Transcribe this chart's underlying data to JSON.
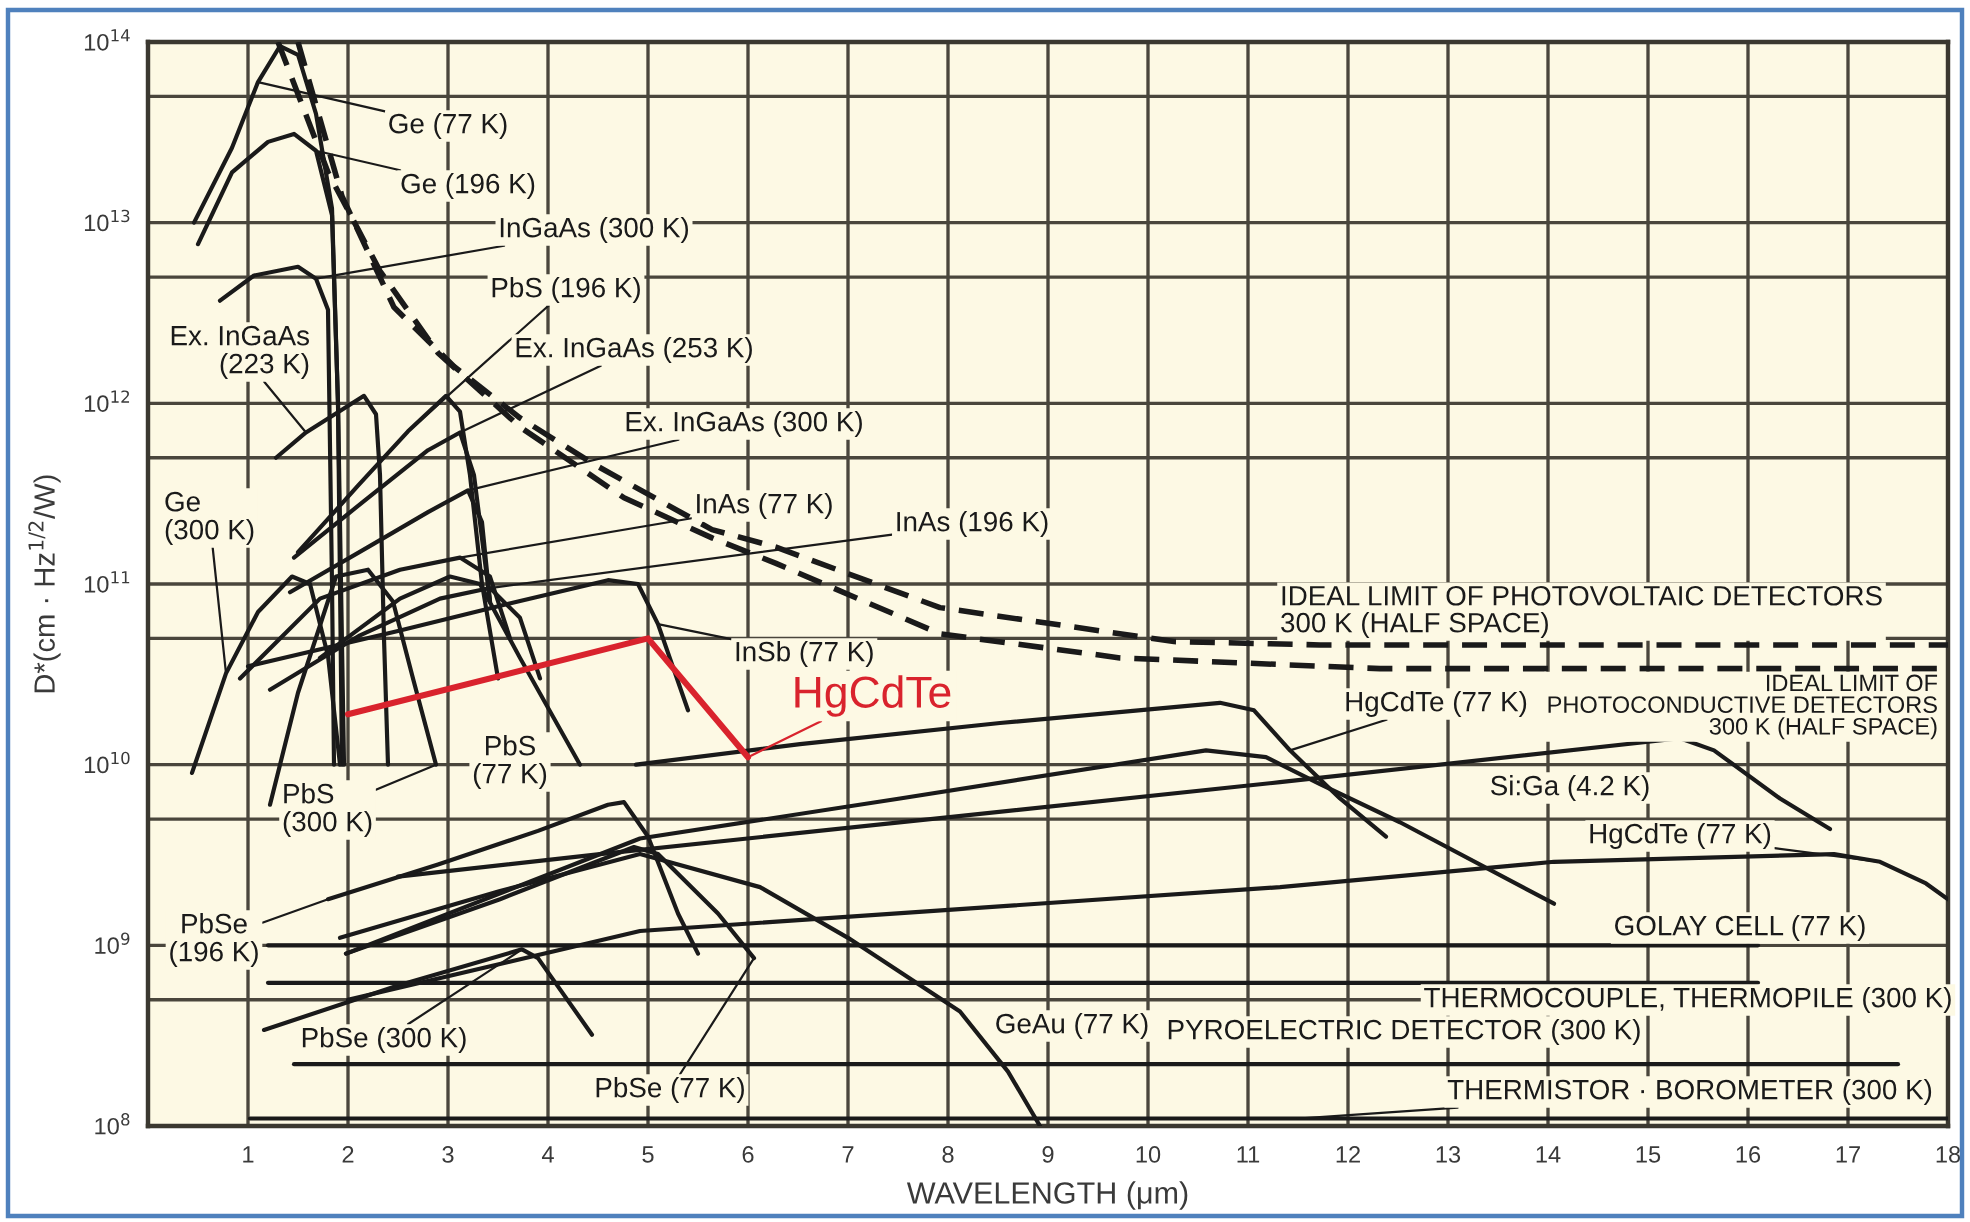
{
  "chart_data": {
    "type": "line",
    "xlabel": "WAVELENGTH (μm)",
    "ylabel": "D*(cm · Hz$^{1/2}$/W)",
    "log": "y",
    "xlim": [
      0,
      18
    ],
    "xticks": [
      1,
      2,
      3,
      4,
      5,
      6,
      7,
      8,
      9,
      10,
      11,
      12,
      13,
      14,
      15,
      16,
      17,
      18
    ],
    "ylim": [
      100000000.0,
      100000000000000.0
    ],
    "yticks": [
      {
        "value": 100000000.0,
        "label": "10$^{8}$"
      },
      {
        "value": 500000000.0,
        "label": null
      },
      {
        "value": 1000000000.0,
        "label": "10$^{9}$"
      },
      {
        "value": 5000000000.0,
        "label": null
      },
      {
        "value": 10000000000.0,
        "label": "10$^{10}$"
      },
      {
        "value": 50000000000.0,
        "label": null
      },
      {
        "value": 100000000000.0,
        "label": "10$^{11}$"
      },
      {
        "value": 500000000000.0,
        "label": null
      },
      {
        "value": 1000000000000.0,
        "label": "10$^{12}$"
      },
      {
        "value": 5000000000000.0,
        "label": null
      },
      {
        "value": 10000000000000.0,
        "label": "10$^{13}$"
      },
      {
        "value": 50000000000000.0,
        "label": null
      },
      {
        "value": 100000000000000.0,
        "label": "10$^{14}$"
      }
    ],
    "grid": true,
    "line_style": "solid",
    "series": [
      {
        "name": "IDEAL LIMIT OF PHOTOVOLTAIC DETECTORS\n300 K (HALF SPACE)",
        "color": "#1a1a1a",
        "line_style": "dashed",
        "x": [
          1.5,
          1.94,
          2.46,
          3.06,
          3.72,
          4.46,
          5.64,
          6.28,
          7.92,
          10.26,
          11.72,
          18
        ],
        "values": [
          100000000000000.0,
          14000000000000.0,
          3400000000000.0,
          1600000000000.0,
          830000000000.0,
          460000000000.0,
          200000000000.0,
          160000000000.0,
          74000000000.0,
          48000000000.0,
          46000000000.0,
          46000000000.0
        ]
      },
      {
        "name": "IDEAL LIMIT OF\nPHOTOCONDUCTIVE DETECTORS\n300 K (HALF SPACE)",
        "color": "#1a1a1a",
        "line_style": "dashed",
        "x": [
          1.3,
          1.8,
          2.32,
          2.9,
          3.72,
          4.76,
          5.64,
          6.28,
          7.92,
          9.72,
          12.32,
          18
        ],
        "values": [
          100000000000000.0,
          19000000000000.0,
          5400000000000.0,
          1900000000000.0,
          740000000000.0,
          300000000000.0,
          180000000000.0,
          130000000000.0,
          53000000000.0,
          39000000000.0,
          34000000000.0,
          34000000000.0
        ]
      },
      {
        "name": "Ge (77 K)",
        "color": "#1a1a1a",
        "x": [
          0.46,
          0.84,
          1.1,
          1.32,
          1.5,
          1.68,
          1.84,
          1.9,
          1.94
        ],
        "values": [
          10000000000000.0,
          26000000000000.0,
          60000000000000.0,
          95000000000000.0,
          85000000000000.0,
          40000000000000.0,
          12000000000000.0,
          1000000000000.0,
          10000000000.0
        ]
      },
      {
        "name": "Ge (196 K)",
        "color": "#1a1a1a",
        "x": [
          0.5,
          0.84,
          1.2,
          1.46,
          1.68,
          1.84,
          1.9,
          1.96
        ],
        "values": [
          7600000000000.0,
          19000000000000.0,
          28000000000000.0,
          31000000000000.0,
          25000000000000.0,
          11000000000000.0,
          1000000000000.0,
          10000000000.0
        ]
      },
      {
        "name": "InGaAs (300 K)",
        "color": "#1a1a1a",
        "x": [
          0.72,
          1.06,
          1.5,
          1.68,
          1.8,
          1.84,
          1.86
        ],
        "values": [
          3700000000000.0,
          5100000000000.0,
          5700000000000.0,
          4900000000000.0,
          3300000000000.0,
          100000000000.0,
          10000000000.0
        ]
      },
      {
        "name": "PbS (196 K)",
        "color": "#1a1a1a",
        "x": [
          1.5,
          2.1,
          2.6,
          2.98,
          3.12,
          3.22,
          3.34,
          3.5
        ],
        "values": [
          150000000000.0,
          350000000000.0,
          700000000000.0,
          1100000000000.0,
          900000000000.0,
          400000000000.0,
          100000000000.0,
          30000000000.0
        ]
      },
      {
        "name": "Ex. InGaAs (253 K)",
        "color": "#1a1a1a",
        "x": [
          1.46,
          2.2,
          2.8,
          3.12,
          3.26,
          3.42
        ],
        "values": [
          140000000000.0,
          300000000000.0,
          550000000000.0,
          690000000000.0,
          400000000000.0,
          80000000000.0
        ]
      },
      {
        "name": "Ex. InGaAs (300 K)",
        "color": "#1a1a1a",
        "x": [
          1.42,
          2.2,
          2.8,
          3.2,
          3.34,
          3.42
        ],
        "values": [
          90000000000.0,
          160000000000.0,
          250000000000.0,
          330000000000.0,
          220000000000.0,
          80000000000.0
        ]
      },
      {
        "name": "Ex. InGaAs\n(223 K)",
        "color": "#1a1a1a",
        "x": [
          1.28,
          1.58,
          2.16,
          2.28,
          2.32,
          2.36,
          2.4
        ],
        "values": [
          500000000000.0,
          690000000000.0,
          1100000000000.0,
          870000000000.0,
          400000000000.0,
          50000000000.0,
          10000000000.0
        ]
      },
      {
        "name": "Ge\n(300 K)",
        "color": "#1a1a1a",
        "x": [
          0.44,
          0.78,
          1.1,
          1.44,
          1.62,
          1.8,
          1.92
        ],
        "values": [
          9000000000.0,
          32000000000.0,
          70000000000.0,
          110000000000.0,
          100000000000.0,
          40000000000.0,
          10000000000.0
        ]
      },
      {
        "name": "InAs (77 K)",
        "color": "#1a1a1a",
        "x": [
          0.92,
          1.72,
          2.52,
          3.12,
          3.42,
          3.62
        ],
        "values": [
          30000000000.0,
          83000000000.0,
          120000000000.0,
          140000000000.0,
          110000000000.0,
          50000000000.0
        ]
      },
      {
        "name": "InAs (196 K)",
        "color": "#1a1a1a",
        "x": [
          1.22,
          2.12,
          2.92,
          3.42,
          3.72,
          3.92
        ],
        "values": [
          26000000000.0,
          52000000000.0,
          83000000000.0,
          95000000000.0,
          65000000000.0,
          30000000000.0
        ]
      },
      {
        "name": "InSb (77 K)",
        "color": "#1a1a1a",
        "x": [
          1.0,
          2.5,
          3.7,
          4.6,
          4.9,
          5.1,
          5.4
        ],
        "values": [
          35000000000.0,
          55000000000.0,
          80000000000.0,
          105000000000.0,
          100000000000.0,
          60000000000.0,
          20000000000.0
        ]
      },
      {
        "name": "HgCdTe",
        "color": "#d9232d",
        "x": [
          2.0,
          5.0,
          6.0
        ],
        "values": [
          19000000000.0,
          50000000000.0,
          11000000000.0
        ]
      },
      {
        "name": "PbS\n(300 K)",
        "color": "#1a1a1a",
        "x": [
          1.22,
          1.5,
          1.88,
          2.2,
          2.45,
          2.65,
          2.88
        ],
        "values": [
          6000000000.0,
          25000000000.0,
          110000000000.0,
          120000000000.0,
          80000000000.0,
          30000000000.0,
          10000000000.0
        ]
      },
      {
        "name": "PbS\n(77 K)",
        "color": "#1a1a1a",
        "x": [
          1.72,
          2.52,
          3.02,
          3.32,
          3.72,
          4.32
        ],
        "values": [
          39000000000.0,
          83000000000.0,
          110000000000.0,
          100000000000.0,
          39000000000.0,
          10000000000.0
        ]
      },
      {
        "name": "PbSe\n(196 K)",
        "color": "#1a1a1a",
        "x": [
          1.8,
          2.9,
          3.9,
          4.6,
          4.76,
          5.0,
          5.3,
          5.5
        ],
        "values": [
          1800000000.0,
          2800000000.0,
          4300000000.0,
          6000000000.0,
          6200000000.0,
          4000000000.0,
          1500000000.0,
          900000000.0
        ]
      },
      {
        "name": "PbSe (77 K)",
        "color": "#1a1a1a",
        "x": [
          1.98,
          3.52,
          4.86,
          5.1,
          5.7,
          6.06
        ],
        "values": [
          900000000.0,
          1800000000.0,
          3500000000.0,
          3200000000.0,
          1500000000.0,
          850000000.0
        ]
      },
      {
        "name": "PbSe (300 K)",
        "color": "#1a1a1a",
        "x": [
          1.16,
          2.5,
          3.74,
          3.9,
          4.44
        ],
        "values": [
          340000000.0,
          600000000.0,
          950000000.0,
          850000000.0,
          320000000.0
        ]
      },
      {
        "name": "GeAu (77 K)",
        "color": "#1a1a1a",
        "x": [
          1.92,
          3.52,
          4.92,
          6.12,
          7.0,
          8.12,
          8.6,
          8.92
        ],
        "values": [
          1100000000.0,
          2000000000.0,
          3200000000.0,
          2100000000.0,
          1100000000.0,
          430000000.0,
          200000000.0,
          100000000.0
        ]
      },
      {
        "name": "HgCdTe (77 K)",
        "color": "#1a1a1a",
        "x": [
          4.88,
          6.52,
          8.52,
          10.72,
          11.06,
          11.42,
          11.92,
          12.38
        ],
        "values": [
          10000000000.0,
          13000000000.0,
          17000000000.0,
          22000000000.0,
          20000000000.0,
          12000000000.0,
          6500000000.0,
          4000000000.0
        ]
      },
      {
        "color": "#1a1a1a",
        "x": [
          1.98,
          4.92,
          7.52,
          10.58,
          11.18,
          11.72,
          12.52,
          14.06
        ],
        "values": [
          900000000.0,
          3900000000.0,
          6500000000.0,
          12000000000.0,
          11000000000.0,
          7800000000.0,
          4800000000.0,
          1700000000.0
        ]
      },
      {
        "name": "Si:Ga (4.2 K)",
        "color": "#1a1a1a",
        "x": [
          2.5,
          4.52,
          11.32,
          15.32,
          15.66,
          16.32,
          16.82
        ],
        "values": [
          2400000000.0,
          3200000000.0,
          8000000000.0,
          14000000000.0,
          12000000000.0,
          6500000000.0,
          4400000000.0
        ]
      },
      {
        "name": "HgCdTe (77 K)",
        "color": "#1a1a1a",
        "x": [
          2.0,
          4.92,
          11.32,
          14.06,
          16.86,
          17.32,
          17.78,
          18
        ],
        "values": [
          500000000.0,
          1200000000.0,
          2100000000.0,
          2900000000.0,
          3200000000.0,
          2900000000.0,
          2200000000.0,
          1800000000.0
        ]
      },
      {
        "name": "GOLAY CELL (77 K)",
        "color": "#1a1a1a",
        "x": [
          1.2,
          16.1
        ],
        "values": [
          1000000000.0,
          1000000000.0
        ]
      },
      {
        "name": "THERMOCOUPLE, THERMOPILE (300 K)",
        "color": "#1a1a1a",
        "x": [
          1.2,
          16.1
        ],
        "values": [
          620000000.0,
          620000000.0
        ]
      },
      {
        "name": "PYROELECTRIC DETECTOR (300 K)",
        "color": "#1a1a1a",
        "x": [
          1.46,
          17.5
        ],
        "values": [
          220000000.0,
          220000000.0
        ]
      },
      {
        "name": "THERMISTOR · BOROMETER (300 K)",
        "color": "#1a1a1a",
        "x": [
          1.02,
          11.5,
          18
        ],
        "values": [
          110000000.0,
          110000000.0,
          110000000.0
        ]
      }
    ]
  }
}
